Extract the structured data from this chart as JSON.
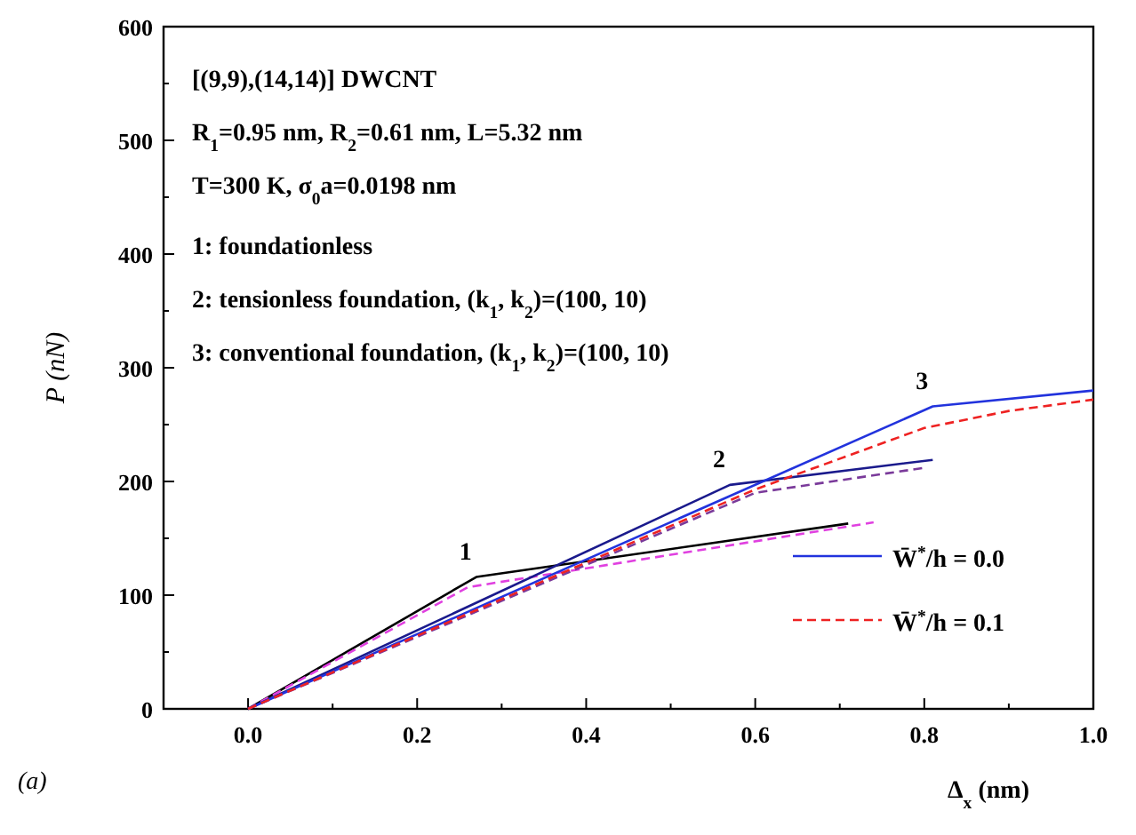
{
  "chart_data": {
    "type": "line",
    "xlabel": "Δ$_{x}$ (nm)",
    "ylabel": "P (nN)",
    "xlim": [
      -0.1,
      1.0
    ],
    "ylim": [
      0,
      600
    ],
    "xticks": [
      {
        "value": 0,
        "label": "0.0"
      },
      {
        "value": 0.1,
        "label": null
      },
      {
        "value": 0.2,
        "label": "0.2"
      },
      {
        "value": 0.3,
        "label": null
      },
      {
        "value": 0.4,
        "label": "0.4"
      },
      {
        "value": 0.5,
        "label": null
      },
      {
        "value": 0.6,
        "label": "0.6"
      },
      {
        "value": 0.7,
        "label": null
      },
      {
        "value": 0.8,
        "label": "0.8"
      },
      {
        "value": 0.9,
        "label": null
      },
      {
        "value": 1,
        "label": "1.0"
      }
    ],
    "yticks": [
      0,
      {
        "value": 50,
        "label": null
      },
      100,
      {
        "value": 150,
        "label": null
      },
      200,
      {
        "value": 250,
        "label": null
      },
      300,
      {
        "value": 350,
        "label": null
      },
      400,
      {
        "value": 450,
        "label": null
      },
      500,
      {
        "value": 550,
        "label": null
      },
      600
    ],
    "grid": false,
    "legend": "right",
    "series": [
      {
        "color": "#000000",
        "line_style": "solid",
        "x": [
          0,
          0.27,
          0.71
        ],
        "values": [
          0,
          116,
          163
        ]
      },
      {
        "color": "#e040e0",
        "line_style": "dashed",
        "x": [
          0,
          0.26,
          0.74
        ],
        "values": [
          0,
          107,
          164
        ]
      },
      {
        "color": "#1a1a8c",
        "line_style": "solid",
        "x": [
          0,
          0.57,
          0.81
        ],
        "values": [
          0,
          197,
          219
        ]
      },
      {
        "color": "#7a3a9a",
        "line_style": "dashed",
        "x": [
          0,
          0.6,
          0.8
        ],
        "values": [
          0,
          190,
          212
        ]
      },
      {
        "name": "W̄$^{*}$/h = 0.0",
        "color": "#2233dd",
        "line_style": "solid",
        "x": [
          0,
          0.81,
          1.0
        ],
        "values": [
          0,
          266,
          280
        ]
      },
      {
        "name": "W̄$^{*}$/h = 0.1",
        "color": "#ee2222",
        "line_style": "dashed",
        "x": [
          0,
          0.6,
          0.8,
          0.9,
          1.0
        ],
        "values": [
          0,
          193,
          247,
          262,
          272
        ]
      }
    ],
    "annotations": [
      "1",
      "2",
      "3",
      "[(9,9),(14,14)] DWCNT",
      "R$_{1}$=0.95 nm, R$_{2}$=0.61 nm, L=5.32 nm",
      "T=300 K, σ$_{0}$a=0.0198 nm",
      "1: foundationless",
      "2: tensionless foundation, (k$_{1}$,  k$_{2}$)=(100, 10)",
      "3: conventional foundation, (k$_{1}$,  k$_{2}$)=(100, 10)",
      "(a)"
    ]
  }
}
